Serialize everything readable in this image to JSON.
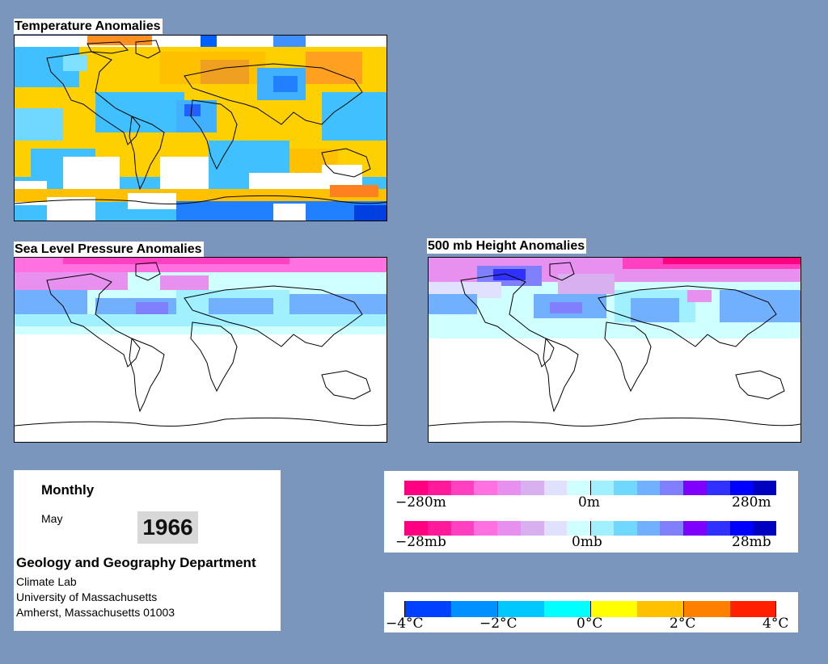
{
  "maps": {
    "temperature": {
      "title": "Temperature Anomalies"
    },
    "slp": {
      "title": "Sea Level Pressure Anomalies"
    },
    "height500": {
      "title": "500 mb Height Anomalies"
    }
  },
  "info": {
    "period": "Monthly",
    "month": "May",
    "year": "1966",
    "department": "Geology and Geography Department",
    "lab": "Climate Lab",
    "university": "University of Massachusetts",
    "address": "Amherst, Massachusetts 01003"
  },
  "legend_height": {
    "min_label": "−280m",
    "mid_label": "0m",
    "max_label": "280m",
    "colors": [
      "#ff0080",
      "#ff1a9a",
      "#ff40c0",
      "#ff70e0",
      "#e890f0",
      "#d8b0f0",
      "#e0e0ff",
      "#d0ffff",
      "#a0f0ff",
      "#70d8ff",
      "#70b0ff",
      "#8080ff",
      "#8000ff",
      "#3030ff",
      "#0000ff",
      "#0000c0"
    ]
  },
  "legend_pressure": {
    "min_label": "−28mb",
    "mid_label": "0mb",
    "max_label": "28mb",
    "colors": [
      "#ff0080",
      "#ff1a9a",
      "#ff40c0",
      "#ff70e0",
      "#e890f0",
      "#d8b0f0",
      "#e0e0ff",
      "#d0ffff",
      "#a0f0ff",
      "#70d8ff",
      "#70b0ff",
      "#8080ff",
      "#8000ff",
      "#3030ff",
      "#0000ff",
      "#0000c0"
    ]
  },
  "legend_temperature": {
    "labels": [
      "−4°C",
      "−2°C",
      "0°C",
      "2°C",
      "4°C"
    ],
    "colors": [
      "#0040ff",
      "#0090ff",
      "#00c8ff",
      "#00ffff",
      "#ffff00",
      "#ffc000",
      "#ff8000",
      "#ff2000"
    ]
  }
}
